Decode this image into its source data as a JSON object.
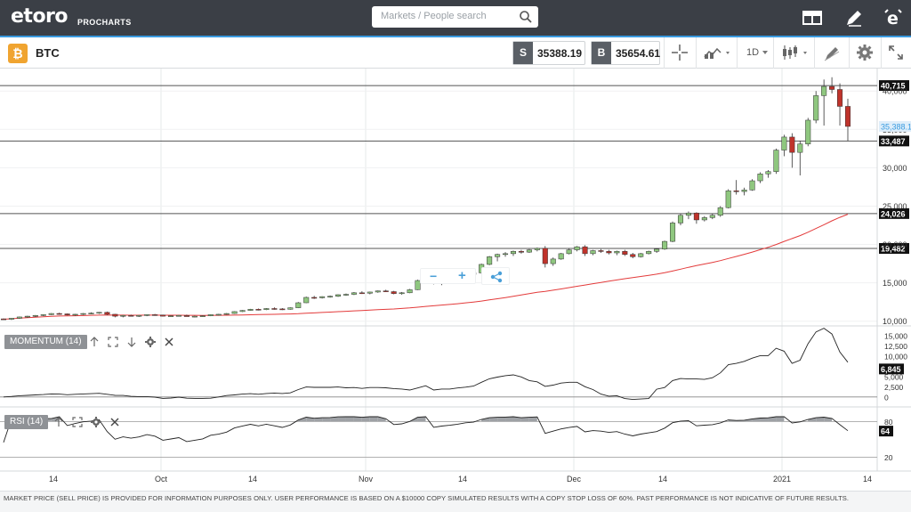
{
  "header": {
    "logo_text": "etoro",
    "logo_sub": "PROCHARTS",
    "search_placeholder": "Markets / People search",
    "icons": [
      "layout-icon",
      "pencil-icon",
      "etoro-e-icon"
    ]
  },
  "instrument": {
    "badge": "₿",
    "name": "BTC",
    "sell_label": "S",
    "sell_price": "35388.19",
    "buy_label": "B",
    "buy_price": "35654.61",
    "timeframe": "1D"
  },
  "toolbar_icons": [
    "crosshair-icon",
    "chart-type-icon",
    "timeframe-dropdown",
    "candles-icon",
    "drawing-tools-icon",
    "settings-icon",
    "fullscreen-icon"
  ],
  "colors": {
    "accent": "#3a9be0",
    "up_candle": "#8fc77f",
    "down_candle": "#c0332b",
    "ma_line": "#e33b3b",
    "badge": "#f0a430"
  },
  "price_axis": {
    "ticks": [
      "40,000",
      "35,000",
      "30,000",
      "25,000",
      "20,000",
      "15,000",
      "10,000"
    ],
    "levels": [
      "40,715",
      "33,487",
      "24,026",
      "19,482"
    ],
    "current_price": "35,388.19"
  },
  "momentum": {
    "label": "MOMENTUM (14)",
    "ticks": [
      "15,000",
      "12,500",
      "10,000",
      "7,500",
      "5,000",
      "2,500",
      "0"
    ],
    "current": "6,845"
  },
  "rsi": {
    "label": "RSI (14)",
    "ticks": [
      "80",
      "20"
    ],
    "current": "64"
  },
  "x_axis": {
    "labels": [
      "14",
      "Oct",
      "14",
      "Nov",
      "14",
      "Dec",
      "14",
      "2021",
      "14"
    ]
  },
  "floating_toolbar": {
    "zoom_out": "−",
    "zoom_in": "+"
  },
  "footer": {
    "disclaimer": "MARKET PRICE (SELL PRICE) IS PROVIDED FOR INFORMATION PURPOSES ONLY. USER PERFORMANCE IS BASED ON A $10000 COPY SIMULATED RESULTS WITH A COPY STOP LOSS OF 60%. PAST PERFORMANCE IS NOT INDICATIVE OF FUTURE RESULTS."
  },
  "chart_data": {
    "type": "candlestick",
    "timeframe": "1D",
    "series": [
      {
        "name": "BTC",
        "values": [
          [
            10300,
            10350,
            10200,
            10250
          ],
          [
            10250,
            10400,
            10150,
            10380
          ],
          [
            10380,
            10600,
            10300,
            10550
          ],
          [
            10550,
            10700,
            10450,
            10650
          ],
          [
            10650,
            10800,
            10550,
            10750
          ],
          [
            10750,
            10900,
            10650,
            10850
          ],
          [
            10850,
            11050,
            10800,
            11000
          ],
          [
            11000,
            11100,
            10850,
            10950
          ],
          [
            10950,
            11000,
            10750,
            10800
          ],
          [
            10800,
            10950,
            10700,
            10900
          ],
          [
            10900,
            11050,
            10800,
            11000
          ],
          [
            11000,
            11150,
            10900,
            11050
          ],
          [
            11050,
            11200,
            10950,
            11150
          ],
          [
            11150,
            11250,
            10800,
            10900
          ],
          [
            10900,
            10950,
            10500,
            10650
          ],
          [
            10650,
            10800,
            10500,
            10750
          ],
          [
            10750,
            10850,
            10600,
            10700
          ],
          [
            10700,
            10800,
            10550,
            10750
          ],
          [
            10750,
            10900,
            10650,
            10850
          ],
          [
            10850,
            10950,
            10700,
            10800
          ],
          [
            10800,
            10850,
            10600,
            10650
          ],
          [
            10650,
            10750,
            10550,
            10700
          ],
          [
            10700,
            10800,
            10600,
            10750
          ],
          [
            10750,
            10850,
            10650,
            10600
          ],
          [
            10600,
            10700,
            10500,
            10650
          ],
          [
            10650,
            10750,
            10550,
            10700
          ],
          [
            10700,
            10900,
            10650,
            10850
          ],
          [
            10850,
            10950,
            10750,
            10900
          ],
          [
            10900,
            11050,
            10850,
            11000
          ],
          [
            11000,
            11300,
            10950,
            11250
          ],
          [
            11250,
            11450,
            11200,
            11400
          ],
          [
            11400,
            11600,
            11350,
            11550
          ],
          [
            11550,
            11650,
            11400,
            11500
          ],
          [
            11500,
            11700,
            11450,
            11650
          ],
          [
            11650,
            11800,
            11500,
            11600
          ],
          [
            11600,
            11700,
            11450,
            11550
          ],
          [
            11550,
            11800,
            11500,
            11750
          ],
          [
            11750,
            12500,
            11700,
            12400
          ],
          [
            12400,
            13200,
            12350,
            13100
          ],
          [
            13100,
            13300,
            12900,
            13050
          ],
          [
            13050,
            13250,
            12950,
            13200
          ],
          [
            13200,
            13350,
            13050,
            13250
          ],
          [
            13250,
            13500,
            13150,
            13450
          ],
          [
            13450,
            13600,
            13300,
            13500
          ],
          [
            13500,
            13800,
            13400,
            13700
          ],
          [
            13700,
            13900,
            13550,
            13650
          ],
          [
            13650,
            13850,
            13500,
            13800
          ],
          [
            13800,
            14000,
            13700,
            13950
          ],
          [
            13950,
            14100,
            13800,
            13850
          ],
          [
            13850,
            13950,
            13500,
            13600
          ],
          [
            13600,
            13800,
            13450,
            13700
          ],
          [
            13700,
            14200,
            13650,
            14100
          ],
          [
            14100,
            15400,
            14050,
            15300
          ],
          [
            15300,
            15900,
            15200,
            15800
          ],
          [
            15800,
            16000,
            14800,
            14900
          ],
          [
            14900,
            15300,
            14700,
            15200
          ],
          [
            15200,
            15500,
            15000,
            15400
          ],
          [
            15400,
            15800,
            15300,
            15700
          ],
          [
            15700,
            16200,
            15600,
            16100
          ],
          [
            16100,
            16400,
            15900,
            16300
          ],
          [
            16300,
            17500,
            16200,
            17400
          ],
          [
            17400,
            18500,
            17300,
            18400
          ],
          [
            18400,
            18800,
            17800,
            18700
          ],
          [
            18700,
            19000,
            18400,
            18800
          ],
          [
            18800,
            19200,
            18500,
            19100
          ],
          [
            19100,
            19300,
            18800,
            19000
          ],
          [
            19000,
            19400,
            18900,
            19300
          ],
          [
            19300,
            19600,
            19100,
            19500
          ],
          [
            19500,
            19800,
            17000,
            17500
          ],
          [
            17500,
            18300,
            17200,
            18100
          ],
          [
            18100,
            18900,
            18000,
            18800
          ],
          [
            18800,
            19500,
            18700,
            19300
          ],
          [
            19300,
            19800,
            19100,
            19700
          ],
          [
            19700,
            19900,
            18500,
            18800
          ],
          [
            18800,
            19300,
            18600,
            19200
          ],
          [
            19200,
            19400,
            18900,
            19100
          ],
          [
            19100,
            19300,
            18700,
            18900
          ],
          [
            18900,
            19200,
            18600,
            19100
          ],
          [
            19100,
            19300,
            18500,
            18700
          ],
          [
            18700,
            18900,
            18200,
            18400
          ],
          [
            18400,
            18900,
            18300,
            18800
          ],
          [
            18800,
            19200,
            18700,
            19100
          ],
          [
            19100,
            19500,
            18900,
            19400
          ],
          [
            19400,
            20500,
            19300,
            20400
          ],
          [
            20400,
            23000,
            20300,
            22800
          ],
          [
            22800,
            24000,
            22500,
            23800
          ],
          [
            23800,
            24300,
            23300,
            24100
          ],
          [
            24100,
            24200,
            22700,
            23200
          ],
          [
            23200,
            23700,
            23000,
            23500
          ],
          [
            23500,
            24000,
            23300,
            23800
          ],
          [
            23800,
            25000,
            23600,
            24800
          ],
          [
            24800,
            27200,
            24700,
            27000
          ],
          [
            27000,
            28400,
            26500,
            26900
          ],
          [
            26900,
            27400,
            26400,
            27100
          ],
          [
            27100,
            28500,
            27000,
            28300
          ],
          [
            28300,
            29400,
            28000,
            29200
          ],
          [
            29200,
            29700,
            28700,
            29500
          ],
          [
            29500,
            32500,
            29200,
            32300
          ],
          [
            32300,
            34300,
            31500,
            34000
          ],
          [
            34000,
            34500,
            30000,
            32000
          ],
          [
            32000,
            33500,
            29000,
            33100
          ],
          [
            33100,
            36500,
            32800,
            36200
          ],
          [
            36200,
            40000,
            35800,
            39400
          ],
          [
            39400,
            41500,
            35500,
            40600
          ],
          [
            40600,
            41800,
            39700,
            40200
          ],
          [
            40200,
            41000,
            35500,
            38000
          ],
          [
            38000,
            39000,
            33500,
            35388
          ]
        ]
      }
    ],
    "y_range": [
      9500,
      42000
    ],
    "moving_average": {
      "color": "#e33b3b"
    },
    "indicators": [
      {
        "name": "MOMENTUM (14)",
        "last": 6845
      },
      {
        "name": "RSI (14)",
        "last": 64
      }
    ]
  }
}
